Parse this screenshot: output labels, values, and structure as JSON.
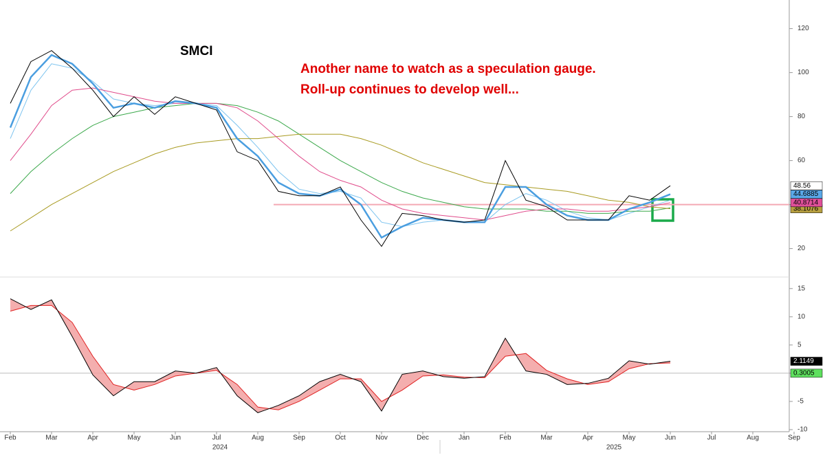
{
  "chart_data": [
    {
      "type": "line",
      "title": "SMCI",
      "annotations": [
        "Another name to watch as a speculation gauge.",
        "Roll-up continues to develop well..."
      ],
      "ylim": [
        8,
        133
      ],
      "yticks": [
        20,
        40,
        60,
        80,
        100,
        120
      ],
      "reference_line": {
        "value": 40,
        "color": "#f4a9b4"
      },
      "series": [
        {
          "color": "#7cc3ef",
          "width": 1,
          "label_last": false,
          "values": [
            70,
            92,
            104,
            102,
            96,
            88,
            86,
            85,
            86,
            86,
            85,
            76,
            66,
            55,
            47,
            45,
            46,
            43,
            32,
            30,
            32,
            33,
            32,
            32,
            40,
            45,
            42,
            37,
            34,
            33,
            36,
            39,
            42,
            null,
            null,
            null,
            null,
            null,
            null,
            null
          ]
        },
        {
          "color": "#3aa84a",
          "width": 1,
          "label_last": false,
          "values": [
            45,
            55,
            63,
            70,
            76,
            80,
            82,
            84,
            85,
            86,
            86,
            85,
            82,
            78,
            72,
            66,
            60,
            55,
            50,
            46,
            43,
            41,
            39,
            38,
            38,
            38,
            37,
            37,
            36,
            36,
            37,
            37,
            38.5,
            null,
            null,
            null,
            null,
            null,
            null,
            null
          ]
        },
        {
          "color": "#a89a20",
          "width": 1,
          "label_last": true,
          "badge_fill": "#b8a040",
          "values": [
            28,
            34,
            40,
            45,
            50,
            55,
            59,
            63,
            66,
            68,
            69,
            70,
            70,
            71,
            72,
            72,
            72,
            70,
            67,
            63,
            59,
            56,
            53,
            50,
            49,
            48,
            47,
            46,
            44,
            42,
            41,
            39,
            38.1076,
            null,
            null,
            null,
            null,
            null,
            null,
            null
          ]
        },
        {
          "color": "#e04a8a",
          "width": 1,
          "label_last": true,
          "badge_fill": "#e0509a",
          "values": [
            60,
            72,
            85,
            92,
            93,
            91,
            89,
            87,
            86,
            86,
            86,
            84,
            78,
            70,
            62,
            55,
            51,
            48,
            42,
            38,
            36,
            35,
            34,
            33,
            35,
            37,
            38,
            38,
            37,
            37,
            38,
            39,
            40.8714,
            null,
            null,
            null,
            null,
            null,
            null,
            null
          ]
        },
        {
          "color": "#4a9ee0",
          "width": 2.5,
          "label_last": true,
          "badge_fill": "#5aa8e8",
          "values": [
            75,
            98,
            108,
            104,
            95,
            84,
            86,
            84,
            87,
            86,
            84,
            70,
            62,
            50,
            45,
            44,
            47,
            40,
            25,
            30,
            34,
            33,
            32,
            32,
            48,
            48,
            40,
            35,
            33,
            33,
            38,
            41,
            44.6885,
            null,
            null,
            null,
            null,
            null,
            null,
            null
          ]
        },
        {
          "color": "#000000",
          "width": 1,
          "label_last": true,
          "badge_fill": "#ffffff",
          "values": [
            86,
            105,
            110,
            102,
            92,
            80,
            89,
            81,
            89,
            86,
            83,
            64,
            60,
            46,
            44,
            44,
            48,
            33,
            21,
            36,
            35,
            33,
            32,
            33,
            60,
            42,
            39,
            33,
            33,
            33,
            44,
            42,
            48.56,
            null,
            null,
            null,
            null,
            null,
            null,
            null
          ]
        }
      ]
    },
    {
      "type": "line",
      "categories": [
        "Feb",
        null,
        "Mar",
        null,
        "Apr",
        null,
        "May",
        null,
        "Jun",
        null,
        "Jul",
        null,
        "Aug",
        null,
        "Sep",
        null,
        "Oct",
        null,
        "Nov",
        null,
        "Dec",
        null,
        "Jan",
        null,
        "Feb",
        null,
        "Mar",
        null,
        "Apr",
        null,
        "May",
        null,
        "Jun",
        null,
        "Jul",
        null,
        "Aug",
        null,
        "Sep",
        null
      ],
      "year_labels": [
        "2024",
        "2025"
      ],
      "ylim": [
        -10,
        16.8
      ],
      "yticks": [
        -10,
        -5,
        0,
        5,
        10,
        15
      ],
      "fill_color": "#f2a0a0",
      "difference_label": {
        "value": 0.3005,
        "color": "#5ee05e"
      },
      "series": [
        {
          "color": "#e02020",
          "width": 1,
          "label_last": false,
          "values": [
            11,
            12,
            12,
            9,
            3,
            -2,
            -3,
            -2,
            -0.5,
            0,
            0.5,
            -2,
            -6,
            -6.5,
            -5,
            -3,
            -1,
            -1,
            -5,
            -3,
            -0.5,
            -0.3,
            -0.7,
            -0.8,
            3,
            3.5,
            0.5,
            -1,
            -2,
            -1.5,
            0.8,
            1.7,
            1.8144,
            null,
            null,
            null,
            null,
            null,
            null,
            null
          ]
        },
        {
          "color": "#000000",
          "width": 1,
          "label_last": true,
          "badge_fill": "#000000",
          "values": [
            13.2,
            11.3,
            13,
            6.5,
            -0.3,
            -4,
            -1.5,
            -1.5,
            0.4,
            0,
            1,
            -4,
            -7,
            -5.7,
            -4,
            -1.5,
            -0.2,
            -1.5,
            -6.7,
            -0.2,
            0.4,
            -0.6,
            -0.9,
            -0.6,
            6.2,
            0.4,
            -0.2,
            -2,
            -1.8,
            -0.9,
            2.2,
            1.6,
            2.1149,
            null,
            null,
            null,
            null,
            null,
            null,
            null
          ]
        }
      ]
    }
  ]
}
